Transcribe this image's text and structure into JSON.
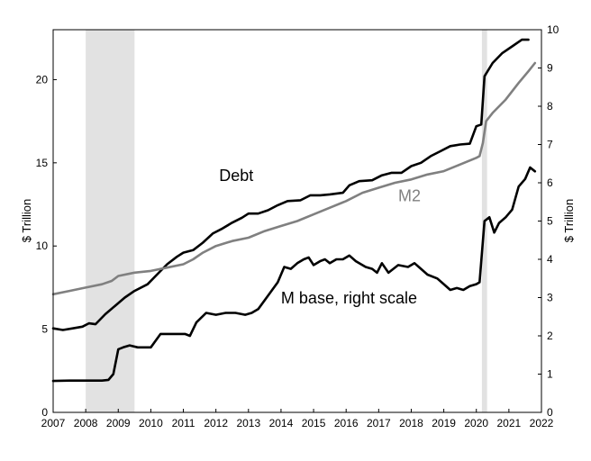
{
  "chart_data": {
    "type": "line",
    "title": "",
    "xlabel": "",
    "ylabel_left": "$ Trillion",
    "ylabel_right": "$ Trillion",
    "xlim": [
      2007,
      2022
    ],
    "ylim_left": [
      0,
      23
    ],
    "ylim_right": [
      0,
      10
    ],
    "x_ticks": [
      2007,
      2008,
      2009,
      2010,
      2011,
      2012,
      2013,
      2014,
      2015,
      2016,
      2017,
      2018,
      2019,
      2020,
      2021,
      2022
    ],
    "x_tick_labels": [
      "2007",
      "2008",
      "2009",
      "2010",
      "2011",
      "2012",
      "2013",
      "2014",
      "2015",
      "2016",
      "2017",
      "2018",
      "2019",
      "2020",
      "2021",
      "2022"
    ],
    "y_ticks_left": [
      0,
      5,
      10,
      15,
      20
    ],
    "y_tick_labels_left": [
      "0",
      "5",
      "10",
      "15",
      "20"
    ],
    "y_ticks_right": [
      0,
      1,
      2,
      3,
      4,
      5,
      6,
      7,
      8,
      9,
      10
    ],
    "y_tick_labels_right": [
      "0",
      "1",
      "2",
      "3",
      "4",
      "5",
      "6",
      "7",
      "8",
      "9",
      "10"
    ],
    "recessions": [
      {
        "start": 2008.0,
        "end": 2009.5
      },
      {
        "start": 2020.17,
        "end": 2020.33
      }
    ],
    "series": [
      {
        "name": "Debt",
        "label": "Debt",
        "axis": "left",
        "color": "#000000",
        "label_at": {
          "x": 2012.1,
          "y": 13.9
        },
        "x": [
          2007.0,
          2007.3,
          2007.6,
          2007.9,
          2008.1,
          2008.3,
          2008.6,
          2008.9,
          2009.2,
          2009.5,
          2009.9,
          2010.2,
          2010.5,
          2010.8,
          2011.0,
          2011.3,
          2011.6,
          2011.9,
          2012.2,
          2012.5,
          2012.8,
          2013.0,
          2013.3,
          2013.6,
          2013.9,
          2014.2,
          2014.6,
          2014.9,
          2015.2,
          2015.5,
          2015.9,
          2016.1,
          2016.4,
          2016.8,
          2017.1,
          2017.4,
          2017.7,
          2018.0,
          2018.3,
          2018.6,
          2018.9,
          2019.2,
          2019.5,
          2019.8,
          2020.0,
          2020.15,
          2020.25,
          2020.5,
          2020.8,
          2021.1,
          2021.4,
          2021.6
        ],
        "values": [
          5.05,
          4.95,
          5.05,
          5.15,
          5.35,
          5.3,
          5.9,
          6.4,
          6.9,
          7.3,
          7.7,
          8.3,
          8.9,
          9.35,
          9.6,
          9.75,
          10.2,
          10.75,
          11.05,
          11.4,
          11.7,
          11.95,
          11.95,
          12.15,
          12.45,
          12.7,
          12.75,
          13.05,
          13.05,
          13.1,
          13.2,
          13.65,
          13.9,
          13.95,
          14.25,
          14.4,
          14.4,
          14.8,
          15.0,
          15.4,
          15.7,
          16.0,
          16.1,
          16.15,
          17.2,
          17.3,
          20.2,
          21.0,
          21.6,
          22.0,
          22.4,
          22.4
        ]
      },
      {
        "name": "M2",
        "label": "M2",
        "axis": "left",
        "color": "#808080",
        "label_at": {
          "x": 2017.6,
          "y": 12.7
        },
        "x": [
          2007.0,
          2007.5,
          2008.0,
          2008.5,
          2008.8,
          2009.0,
          2009.5,
          2010.0,
          2010.5,
          2011.0,
          2011.3,
          2011.6,
          2012.0,
          2012.5,
          2013.0,
          2013.5,
          2014.0,
          2014.5,
          2015.0,
          2015.5,
          2016.0,
          2016.5,
          2017.0,
          2017.5,
          2018.0,
          2018.5,
          2019.0,
          2019.5,
          2020.0,
          2020.1,
          2020.2,
          2020.3,
          2020.5,
          2020.9,
          2021.3,
          2021.6,
          2021.8
        ],
        "values": [
          7.1,
          7.3,
          7.5,
          7.7,
          7.9,
          8.2,
          8.4,
          8.5,
          8.7,
          8.9,
          9.2,
          9.6,
          10.0,
          10.3,
          10.5,
          10.9,
          11.2,
          11.5,
          11.9,
          12.3,
          12.7,
          13.2,
          13.5,
          13.8,
          14.0,
          14.3,
          14.5,
          14.9,
          15.3,
          15.4,
          16.2,
          17.5,
          18.0,
          18.8,
          19.8,
          20.5,
          21.0
        ]
      },
      {
        "name": "M base",
        "label": "M base, right scale",
        "axis": "right",
        "color": "#000000",
        "label_at": {
          "x": 2014.0,
          "y": 2.85
        },
        "x": [
          2007.0,
          2007.5,
          2008.0,
          2008.5,
          2008.7,
          2008.85,
          2009.0,
          2009.15,
          2009.35,
          2009.6,
          2009.8,
          2010.0,
          2010.3,
          2010.6,
          2010.9,
          2011.05,
          2011.2,
          2011.4,
          2011.7,
          2012.0,
          2012.3,
          2012.6,
          2012.9,
          2013.1,
          2013.3,
          2013.6,
          2013.9,
          2014.1,
          2014.3,
          2014.5,
          2014.7,
          2014.85,
          2015.0,
          2015.2,
          2015.35,
          2015.5,
          2015.7,
          2015.9,
          2016.1,
          2016.3,
          2016.6,
          2016.8,
          2016.95,
          2017.1,
          2017.3,
          2017.6,
          2017.9,
          2018.1,
          2018.3,
          2018.5,
          2018.8,
          2019.0,
          2019.2,
          2019.4,
          2019.6,
          2019.8,
          2020.0,
          2020.1,
          2020.25,
          2020.4,
          2020.55,
          2020.7,
          2020.9,
          2021.1,
          2021.3,
          2021.5,
          2021.65,
          2021.8
        ],
        "values": [
          0.82,
          0.83,
          0.83,
          0.83,
          0.85,
          1.0,
          1.65,
          1.7,
          1.75,
          1.7,
          1.7,
          1.7,
          2.05,
          2.05,
          2.05,
          2.05,
          2.0,
          2.35,
          2.6,
          2.55,
          2.6,
          2.6,
          2.55,
          2.6,
          2.7,
          3.05,
          3.4,
          3.8,
          3.75,
          3.9,
          4.0,
          4.05,
          3.85,
          3.95,
          4.0,
          3.9,
          4.0,
          4.0,
          4.1,
          3.95,
          3.8,
          3.75,
          3.65,
          3.9,
          3.65,
          3.85,
          3.8,
          3.9,
          3.75,
          3.6,
          3.5,
          3.35,
          3.2,
          3.25,
          3.2,
          3.3,
          3.35,
          3.4,
          5.0,
          5.1,
          4.7,
          4.95,
          5.1,
          5.3,
          5.9,
          6.1,
          6.4,
          6.3
        ]
      }
    ]
  }
}
